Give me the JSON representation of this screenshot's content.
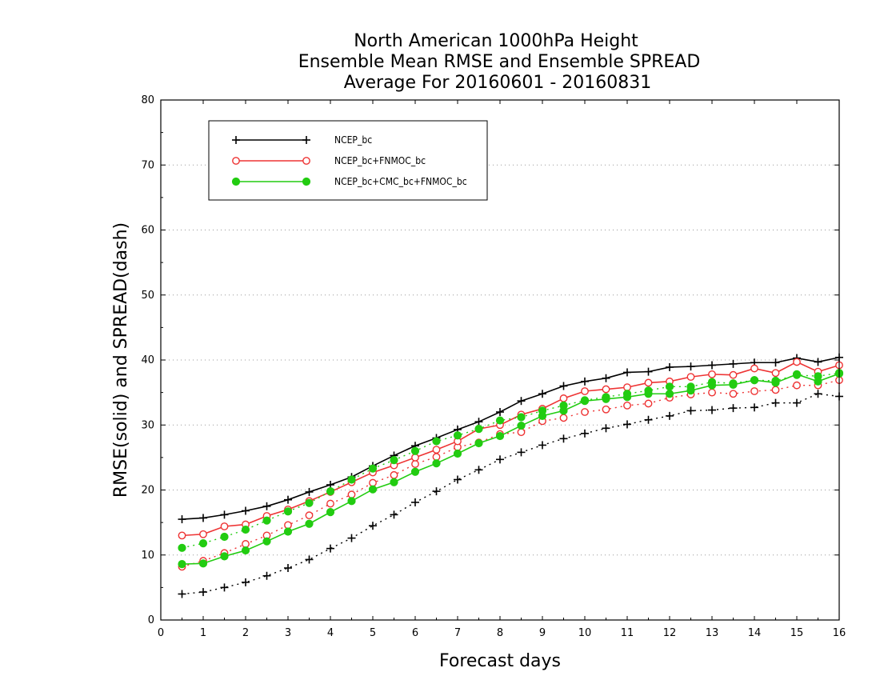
{
  "chart_data": {
    "type": "line",
    "title": [
      "North American 1000hPa Height",
      "Ensemble Mean RMSE and Ensemble SPREAD",
      "Average For 20160601 - 20160831"
    ],
    "xlabel": "Forecast days",
    "ylabel": "RMSE(solid) and SPREAD(dash)",
    "xlim": [
      0,
      16
    ],
    "ylim": [
      0,
      80
    ],
    "xticks": [
      0,
      1,
      2,
      3,
      4,
      5,
      6,
      7,
      8,
      9,
      10,
      11,
      12,
      13,
      14,
      15,
      16
    ],
    "yticks": [
      0,
      10,
      20,
      30,
      40,
      50,
      60,
      70,
      80
    ],
    "grid": "horizontal dotted",
    "legend_position": "top-left",
    "x": [
      0.5,
      1.0,
      1.5,
      2.0,
      2.5,
      3.0,
      3.5,
      4.0,
      4.5,
      5.0,
      5.5,
      6.0,
      6.5,
      7.0,
      7.5,
      8.0,
      8.5,
      9.0,
      9.5,
      10.0,
      10.5,
      11.0,
      11.5,
      12.0,
      12.5,
      13.0,
      13.5,
      14.0,
      14.5,
      15.0,
      15.5,
      16.0
    ],
    "series": [
      {
        "name": "NCEP_bc",
        "color": "#000000",
        "marker": "plus",
        "rmse": [
          15.5,
          15.7,
          16.2,
          16.8,
          17.5,
          18.5,
          19.7,
          20.8,
          22.0,
          23.7,
          25.3,
          26.8,
          28.0,
          29.3,
          30.5,
          32.0,
          33.7,
          34.8,
          36.0,
          36.7,
          37.2,
          38.1,
          38.2,
          38.9,
          39.0,
          39.2,
          39.4,
          39.6,
          39.6,
          40.3,
          39.7,
          40.4
        ],
        "spread": [
          4.0,
          4.3,
          5.0,
          5.8,
          6.8,
          8.0,
          9.3,
          11.0,
          12.6,
          14.5,
          16.2,
          18.1,
          19.8,
          21.6,
          23.1,
          24.7,
          25.8,
          26.9,
          27.9,
          28.7,
          29.5,
          30.1,
          30.8,
          31.4,
          32.2,
          32.3,
          32.6,
          32.7,
          33.4,
          33.4,
          34.8,
          34.4
        ]
      },
      {
        "name": "NCEP_bc+FNMOC_bc",
        "color": "#ee3333",
        "marker": "open-circle",
        "rmse": [
          13.0,
          13.2,
          14.4,
          14.7,
          16.0,
          17.0,
          18.3,
          19.7,
          21.2,
          22.7,
          23.8,
          25.0,
          26.2,
          27.5,
          29.4,
          30.0,
          31.6,
          32.5,
          34.1,
          35.2,
          35.5,
          35.8,
          36.5,
          36.7,
          37.4,
          37.8,
          37.7,
          38.7,
          38.0,
          39.7,
          38.2,
          39.2
        ],
        "spread": [
          8.2,
          9.1,
          10.3,
          11.7,
          13.0,
          14.6,
          16.1,
          17.9,
          19.3,
          21.1,
          22.3,
          24.0,
          25.1,
          26.6,
          27.3,
          28.6,
          28.9,
          30.6,
          31.1,
          32.0,
          32.4,
          33.0,
          33.3,
          34.2,
          34.7,
          35.0,
          34.8,
          35.2,
          35.4,
          36.1,
          36.1,
          36.9
        ]
      },
      {
        "name": "NCEP_bc+CMC_bc+FNMOC_bc",
        "color": "#22cc11",
        "marker": "filled-circle",
        "rmse": [
          8.6,
          8.7,
          9.8,
          10.7,
          12.1,
          13.6,
          14.8,
          16.6,
          18.3,
          20.1,
          21.2,
          22.8,
          24.1,
          25.6,
          27.2,
          28.3,
          29.9,
          31.4,
          32.2,
          33.7,
          34.0,
          34.3,
          34.8,
          34.8,
          35.3,
          36.1,
          36.2,
          36.9,
          36.5,
          37.8,
          36.7,
          37.9
        ],
        "spread": [
          11.1,
          11.8,
          12.8,
          13.9,
          15.3,
          16.7,
          18.0,
          19.8,
          21.6,
          23.3,
          24.6,
          26.0,
          27.5,
          28.4,
          29.4,
          30.7,
          31.2,
          32.2,
          33.0,
          33.8,
          34.3,
          34.8,
          35.3,
          35.9,
          35.9,
          36.6,
          36.4,
          36.9,
          36.8,
          37.7,
          37.5,
          38.0
        ]
      }
    ]
  }
}
